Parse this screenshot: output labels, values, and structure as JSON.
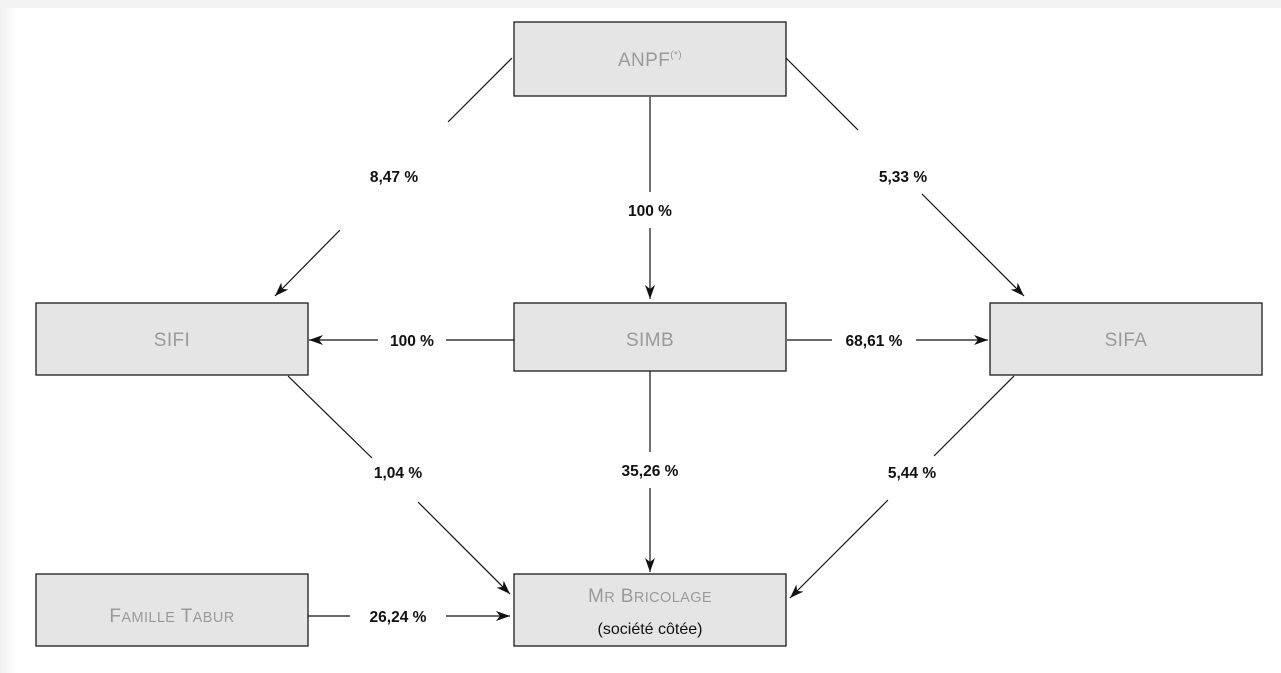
{
  "nodes": {
    "anpf": {
      "label": "ANPF",
      "sup": "(*)"
    },
    "sifi": {
      "label": "SIFI"
    },
    "simb": {
      "label": "SIMB"
    },
    "sifa": {
      "label": "SIFA"
    },
    "famille": {
      "label_initial_1": "F",
      "label_rest_1": "AMILLE",
      "label_initial_2": "T",
      "label_rest_2": "ABUR"
    },
    "mrbricolage": {
      "label_initial_1": "M",
      "label_rest_1": "R",
      "label_initial_2": "B",
      "label_rest_2": "RICOLAGE",
      "sublabel": "(société côtée)"
    }
  },
  "edges": {
    "anpf_sifi": "8,47 %",
    "anpf_simb": "100 %",
    "anpf_sifa": "5,33 %",
    "simb_sifi": "100 %",
    "simb_sifa": "68,61 %",
    "sifi_mrb": "1,04 %",
    "simb_mrb": "35,26 %",
    "sifa_mrb": "5,44 %",
    "famille_mrb": "26,24 %"
  },
  "colors": {
    "box_fill": "#e5e5e5",
    "box_border": "#1a1a1a",
    "box_text": "#9a9a9a",
    "edge": "#111111"
  }
}
